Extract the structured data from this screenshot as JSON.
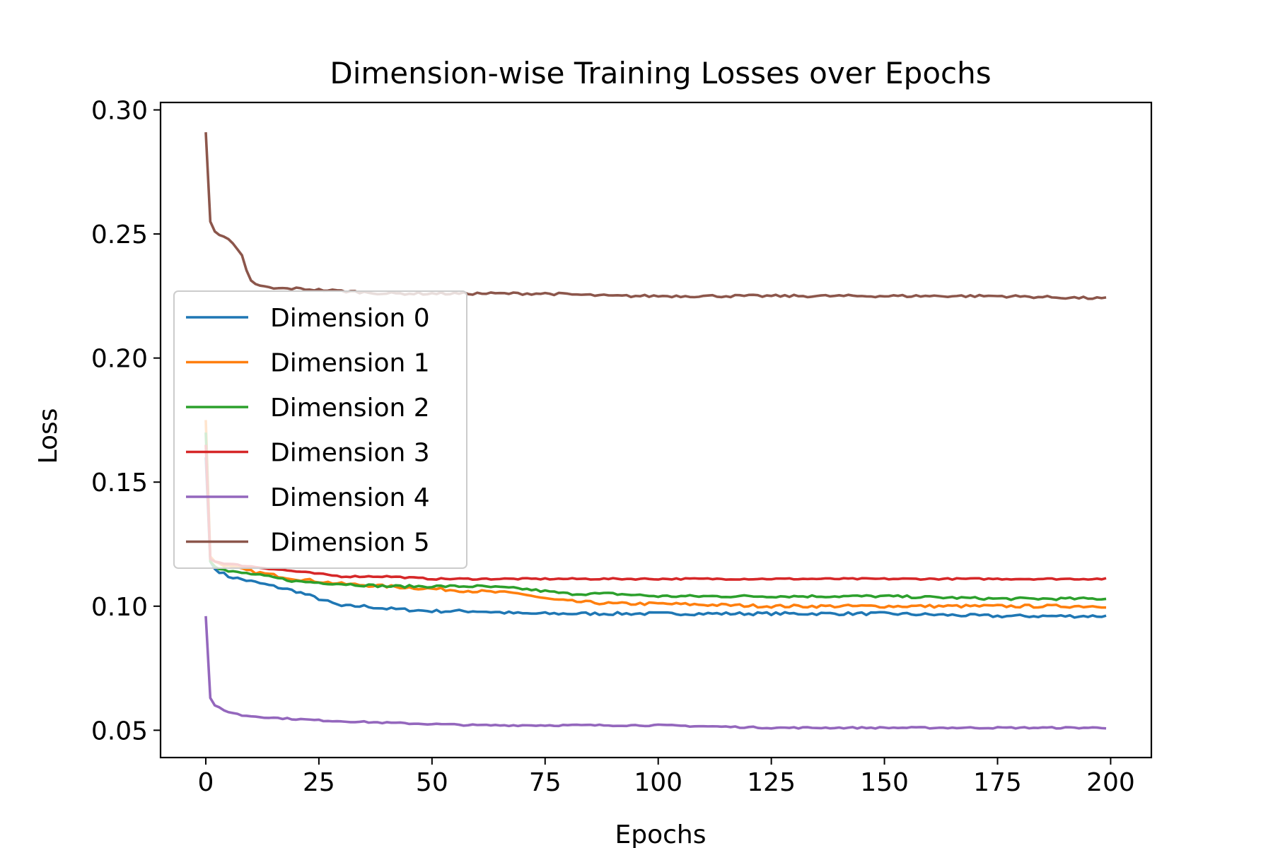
{
  "chart_data": {
    "type": "line",
    "title": "Dimension-wise Training Losses over Epochs",
    "xlabel": "Epochs",
    "ylabel": "Loss",
    "xlim": [
      -10,
      209
    ],
    "ylim": [
      0.039,
      0.303
    ],
    "xticks": [
      0,
      25,
      50,
      75,
      100,
      125,
      150,
      175,
      200
    ],
    "xtick_labels": [
      "0",
      "25",
      "50",
      "75",
      "100",
      "125",
      "150",
      "175",
      "200"
    ],
    "yticks": [
      0.05,
      0.1,
      0.15,
      0.2,
      0.25,
      0.3
    ],
    "ytick_labels": [
      "0.05",
      "0.10",
      "0.15",
      "0.20",
      "0.25",
      "0.30"
    ],
    "grid": false,
    "legend_position": "center-left",
    "x_start": 0,
    "x_end": 199,
    "series": [
      {
        "name": "Dimension 0",
        "color": "#1f77b4",
        "points": [
          [
            0,
            0.16
          ],
          [
            1,
            0.118
          ],
          [
            2,
            0.115
          ],
          [
            5,
            0.112
          ],
          [
            10,
            0.11
          ],
          [
            15,
            0.108
          ],
          [
            20,
            0.106
          ],
          [
            25,
            0.103
          ],
          [
            30,
            0.1
          ],
          [
            35,
            0.1
          ],
          [
            40,
            0.099
          ],
          [
            50,
            0.098
          ],
          [
            60,
            0.098
          ],
          [
            70,
            0.097
          ],
          [
            80,
            0.097
          ],
          [
            90,
            0.097
          ],
          [
            100,
            0.097
          ],
          [
            125,
            0.097
          ],
          [
            150,
            0.097
          ],
          [
            175,
            0.096
          ],
          [
            199,
            0.096
          ]
        ],
        "noise": 0.0006
      },
      {
        "name": "Dimension 1",
        "color": "#ff7f0e",
        "points": [
          [
            0,
            0.175
          ],
          [
            1,
            0.12
          ],
          [
            2,
            0.118
          ],
          [
            5,
            0.116
          ],
          [
            10,
            0.114
          ],
          [
            20,
            0.111
          ],
          [
            30,
            0.109
          ],
          [
            40,
            0.108
          ],
          [
            50,
            0.107
          ],
          [
            60,
            0.106
          ],
          [
            70,
            0.105
          ],
          [
            75,
            0.103
          ],
          [
            80,
            0.102
          ],
          [
            90,
            0.101
          ],
          [
            100,
            0.101
          ],
          [
            125,
            0.1
          ],
          [
            150,
            0.1
          ],
          [
            175,
            0.1
          ],
          [
            199,
            0.1
          ]
        ],
        "noise": 0.0006
      },
      {
        "name": "Dimension 2",
        "color": "#2ca02c",
        "points": [
          [
            0,
            0.17
          ],
          [
            1,
            0.118
          ],
          [
            2,
            0.116
          ],
          [
            5,
            0.114
          ],
          [
            10,
            0.113
          ],
          [
            20,
            0.11
          ],
          [
            30,
            0.109
          ],
          [
            40,
            0.108
          ],
          [
            50,
            0.108
          ],
          [
            60,
            0.108
          ],
          [
            70,
            0.107
          ],
          [
            75,
            0.106
          ],
          [
            80,
            0.105
          ],
          [
            90,
            0.105
          ],
          [
            100,
            0.104
          ],
          [
            125,
            0.104
          ],
          [
            150,
            0.104
          ],
          [
            175,
            0.103
          ],
          [
            199,
            0.103
          ]
        ],
        "noise": 0.0005
      },
      {
        "name": "Dimension 3",
        "color": "#d62728",
        "points": [
          [
            0,
            0.165
          ],
          [
            1,
            0.119
          ],
          [
            2,
            0.118
          ],
          [
            5,
            0.117
          ],
          [
            10,
            0.116
          ],
          [
            15,
            0.115
          ],
          [
            20,
            0.114
          ],
          [
            30,
            0.112
          ],
          [
            40,
            0.112
          ],
          [
            50,
            0.111
          ],
          [
            75,
            0.111
          ],
          [
            100,
            0.111
          ],
          [
            125,
            0.111
          ],
          [
            150,
            0.111
          ],
          [
            175,
            0.111
          ],
          [
            199,
            0.111
          ]
        ],
        "noise": 0.0003
      },
      {
        "name": "Dimension 4",
        "color": "#9467bd",
        "points": [
          [
            0,
            0.096
          ],
          [
            1,
            0.063
          ],
          [
            2,
            0.06
          ],
          [
            4,
            0.058
          ],
          [
            8,
            0.056
          ],
          [
            15,
            0.055
          ],
          [
            25,
            0.054
          ],
          [
            40,
            0.053
          ],
          [
            60,
            0.052
          ],
          [
            80,
            0.052
          ],
          [
            100,
            0.052
          ],
          [
            125,
            0.051
          ],
          [
            150,
            0.051
          ],
          [
            175,
            0.051
          ],
          [
            199,
            0.051
          ]
        ],
        "noise": 0.0003
      },
      {
        "name": "Dimension 5",
        "color": "#8c564b",
        "points": [
          [
            0,
            0.291
          ],
          [
            1,
            0.255
          ],
          [
            2,
            0.251
          ],
          [
            4,
            0.249
          ],
          [
            6,
            0.246
          ],
          [
            8,
            0.241
          ],
          [
            9,
            0.235
          ],
          [
            10,
            0.231
          ],
          [
            12,
            0.229
          ],
          [
            15,
            0.228
          ],
          [
            20,
            0.228
          ],
          [
            30,
            0.227
          ],
          [
            40,
            0.226
          ],
          [
            50,
            0.226
          ],
          [
            60,
            0.226
          ],
          [
            75,
            0.226
          ],
          [
            90,
            0.225
          ],
          [
            100,
            0.225
          ],
          [
            125,
            0.225
          ],
          [
            150,
            0.225
          ],
          [
            175,
            0.225
          ],
          [
            199,
            0.224
          ]
        ],
        "noise": 0.0005
      }
    ]
  }
}
